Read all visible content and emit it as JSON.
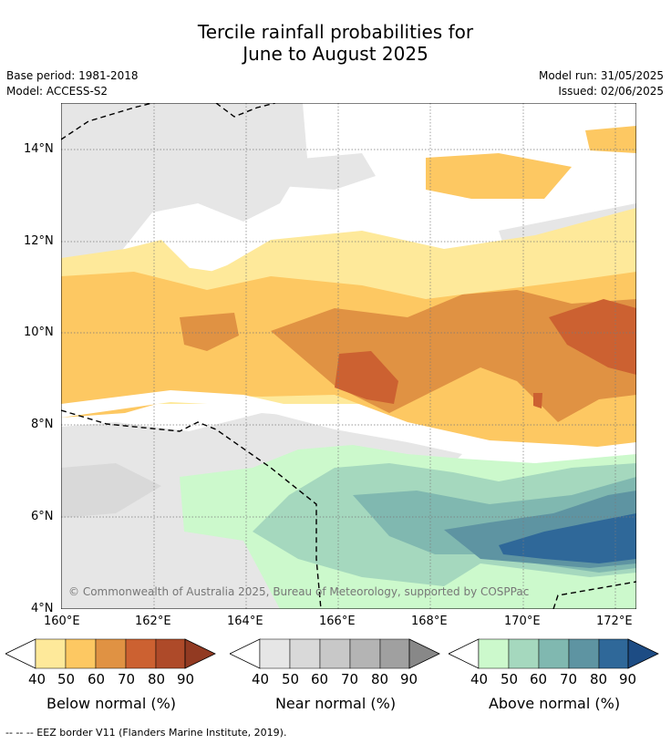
{
  "title_line1": "Tercile rainfall probabilities for",
  "title_line2": "June to August 2025",
  "base_period": "Base period: 1981-2018",
  "model": "Model: ACCESS-S2",
  "model_run": "Model run: 31/05/2025",
  "issued": "Issued: 02/06/2025",
  "map": {
    "lat_labels": [
      "14°N",
      "12°N",
      "10°N",
      "8°N",
      "6°N",
      "4°N"
    ],
    "lon_labels": [
      "160°E",
      "162°E",
      "164°E",
      "166°E",
      "168°E",
      "170°E",
      "172°E"
    ],
    "copyright": "© Commonwealth of Australia 2025, Bureau of Meteorology, supported by COSPPac"
  },
  "colorbars": [
    {
      "label": "Below normal (%)",
      "ticks": [
        "40",
        "50",
        "60",
        "70",
        "80",
        "90"
      ],
      "colors": [
        "#fee99a",
        "#fdc862",
        "#e09243",
        "#cc6131",
        "#ae4a29",
        "#923a22"
      ]
    },
    {
      "label": "Near normal (%)",
      "ticks": [
        "40",
        "50",
        "60",
        "70",
        "80",
        "90"
      ],
      "colors": [
        "#e6e6e6",
        "#d9d9d9",
        "#c8c8c8",
        "#b4b4b4",
        "#a0a0a0",
        "#888888"
      ]
    },
    {
      "label": "Above normal (%)",
      "ticks": [
        "40",
        "50",
        "60",
        "70",
        "80",
        "90"
      ],
      "colors": [
        "#ccf9cc",
        "#a5d8be",
        "#80b8b0",
        "#5e94a2",
        "#2f6899",
        "#1d4c84"
      ]
    }
  ],
  "footnote": "--  --  -- EEZ border V11 (Flanders Marine Institute, 2019)."
}
